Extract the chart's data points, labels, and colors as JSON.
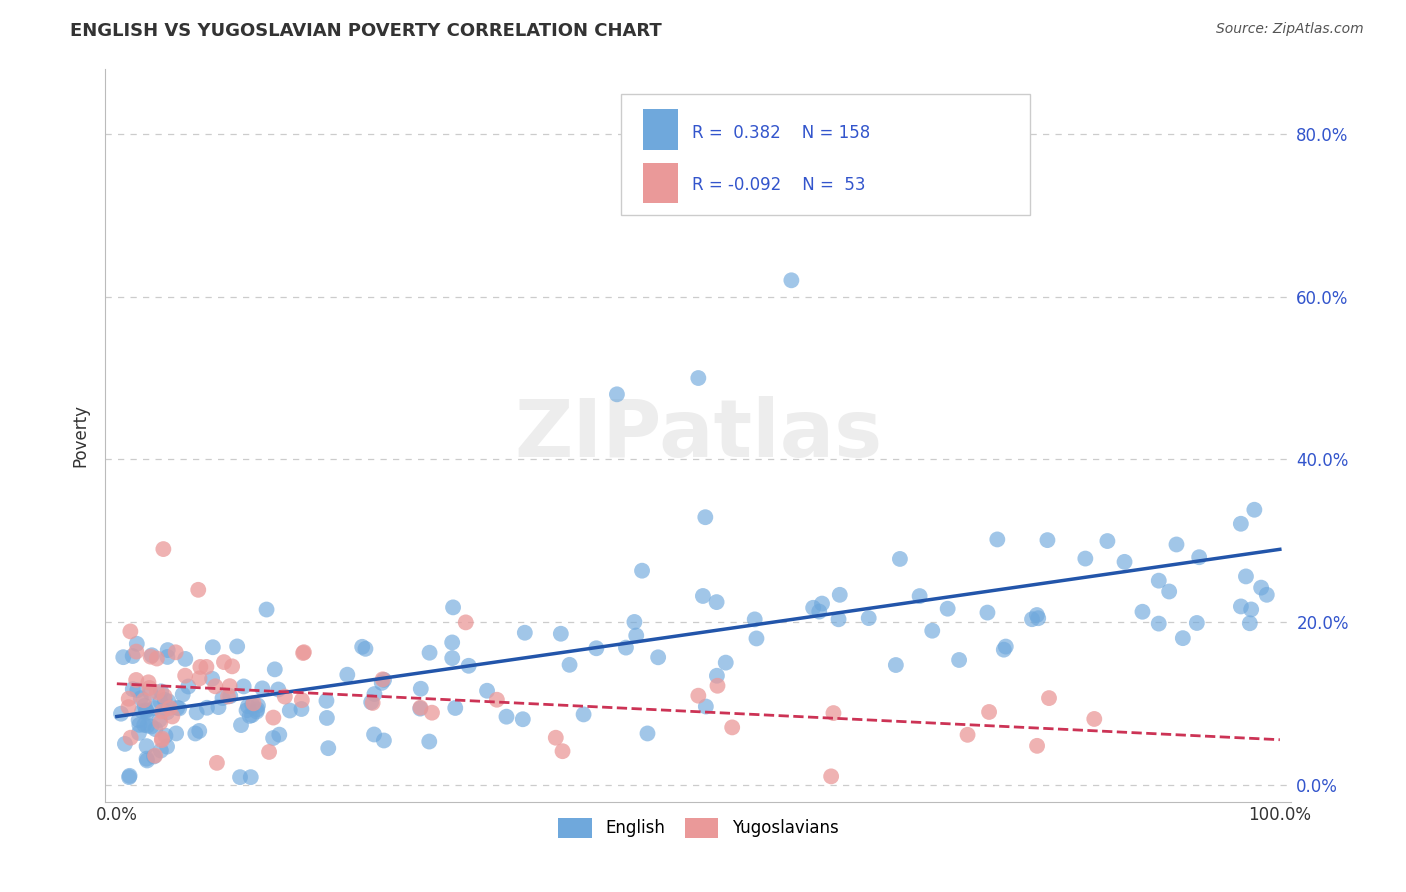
{
  "title": "ENGLISH VS YUGOSLAVIAN POVERTY CORRELATION CHART",
  "source_text": "Source: ZipAtlas.com",
  "ylabel": "Poverty",
  "xlim": [
    -0.01,
    1.01
  ],
  "ylim": [
    -0.02,
    0.88
  ],
  "yticks": [
    0.0,
    0.2,
    0.4,
    0.6,
    0.8
  ],
  "ytick_labels": [
    "0.0%",
    "20.0%",
    "40.0%",
    "60.0%",
    "80.0%"
  ],
  "xtick_left_label": "0.0%",
  "xtick_right_label": "100.0%",
  "english_R": 0.382,
  "english_N": 158,
  "yugoslav_R": -0.092,
  "yugoslav_N": 53,
  "english_color": "#6fa8dc",
  "yugoslav_color": "#ea9999",
  "english_line_color": "#2255aa",
  "yugoslav_line_color": "#cc3355",
  "background_color": "#ffffff",
  "watermark_text": "ZIPatlas",
  "grid_color": "#cccccc",
  "legend_text_color": "#3355cc",
  "title_color": "#333333",
  "source_color": "#555555",
  "ylabel_color": "#333333",
  "tick_color": "#333333",
  "right_tick_color": "#3355cc"
}
